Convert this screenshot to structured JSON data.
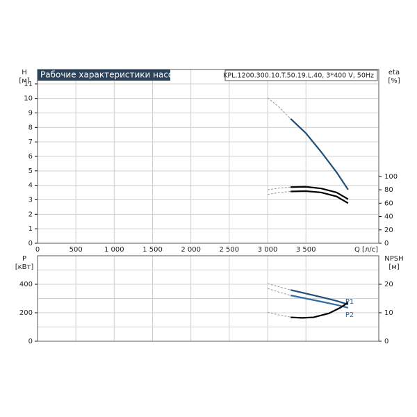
{
  "chart_data": [
    {
      "type": "line",
      "title": "Рабочие характеристики насоса",
      "subtitle": "KPL.1200.300.10.T.50.19.L.40, 3*400 V, 50Hz",
      "xlabel": "Q [л/с]",
      "ylabel": "H",
      "yunit": "[м]",
      "y2label": "eta",
      "y2unit": "[%]",
      "xlim": [
        0,
        4450
      ],
      "xticks": [
        0,
        500,
        {
          "value": 1000,
          "label": "1 000"
        },
        {
          "value": 1500,
          "label": "1 500"
        },
        {
          "value": 2000,
          "label": "2 000"
        },
        {
          "value": 2500,
          "label": "2 500"
        },
        {
          "value": 3000,
          "label": "3 000"
        },
        {
          "value": 3500,
          "label": "3 500"
        }
      ],
      "ylim": [
        0,
        12
      ],
      "yticks": [
        0,
        1,
        2,
        3,
        4,
        5,
        6,
        7,
        8,
        9,
        10,
        11
      ],
      "y2lim": [
        0,
        260
      ],
      "y2ticks": [
        0,
        20,
        40,
        60,
        80,
        100
      ],
      "grid": true,
      "series": [
        {
          "color": "#999999",
          "style": "dashed",
          "x": [
            3000,
            3150,
            3300
          ],
          "values": [
            10.05,
            9.4,
            8.6
          ]
        },
        {
          "color": "#1f4e79",
          "style": "solid",
          "x": [
            3300,
            3500,
            3700,
            3900,
            4050
          ],
          "values": [
            8.6,
            7.6,
            6.3,
            4.9,
            3.7
          ]
        },
        {
          "color": "#999999",
          "style": "dashed",
          "axis": "y2",
          "x": [
            3000,
            3150,
            3300
          ],
          "values": [
            80,
            82.5,
            84
          ]
        },
        {
          "color": "#000000",
          "style": "solid",
          "axis": "y2",
          "x": [
            3300,
            3500,
            3700,
            3900,
            4050
          ],
          "values": [
            84,
            84.5,
            82,
            76,
            66
          ]
        },
        {
          "color": "#999999",
          "style": "dashed",
          "axis": "y2",
          "x": [
            3000,
            3150,
            3300
          ],
          "values": [
            73,
            76,
            77.5
          ]
        },
        {
          "color": "#000000",
          "style": "solid",
          "axis": "y2",
          "x": [
            3300,
            3500,
            3700,
            3900,
            4050
          ],
          "values": [
            77.5,
            78,
            76,
            70,
            60
          ]
        }
      ]
    },
    {
      "type": "line",
      "ylabel": "P",
      "yunit": "[кВт]",
      "y2label": "NPSH",
      "y2unit": "[м]",
      "xlim": [
        0,
        4450
      ],
      "ylim": [
        0,
        600
      ],
      "yticks": [
        0,
        200,
        400
      ],
      "yminorticks": [
        100,
        300,
        500
      ],
      "y2lim": [
        0,
        30
      ],
      "y2ticks": [
        0,
        10,
        20
      ],
      "grid": true,
      "series": [
        {
          "color": "#999999",
          "style": "dashed",
          "x": [
            3000,
            3150,
            3300
          ],
          "values": [
            405,
            382,
            360
          ]
        },
        {
          "name": "P1",
          "color": "#1f4e79",
          "style": "solid",
          "x": [
            3300,
            3500,
            3700,
            3900,
            4050
          ],
          "values": [
            360,
            335,
            310,
            283,
            258
          ]
        },
        {
          "color": "#999999",
          "style": "dashed",
          "x": [
            3000,
            3150,
            3300
          ],
          "values": [
            370,
            345,
            322
          ]
        },
        {
          "name": "P2",
          "color": "#2e6da4",
          "style": "solid",
          "x": [
            3300,
            3500,
            3700,
            3900,
            4050
          ],
          "values": [
            322,
            300,
            278,
            255,
            235
          ]
        },
        {
          "color": "#999999",
          "style": "dashed",
          "axis": "y2",
          "x": [
            3000,
            3150,
            3300
          ],
          "values": [
            10.2,
            9.2,
            8.5
          ]
        },
        {
          "color": "#000000",
          "style": "solid",
          "axis": "y2",
          "x": [
            3300,
            3450,
            3600,
            3800,
            3950,
            4050
          ],
          "values": [
            8.4,
            8.2,
            8.4,
            9.8,
            11.8,
            13.6
          ]
        }
      ]
    }
  ]
}
